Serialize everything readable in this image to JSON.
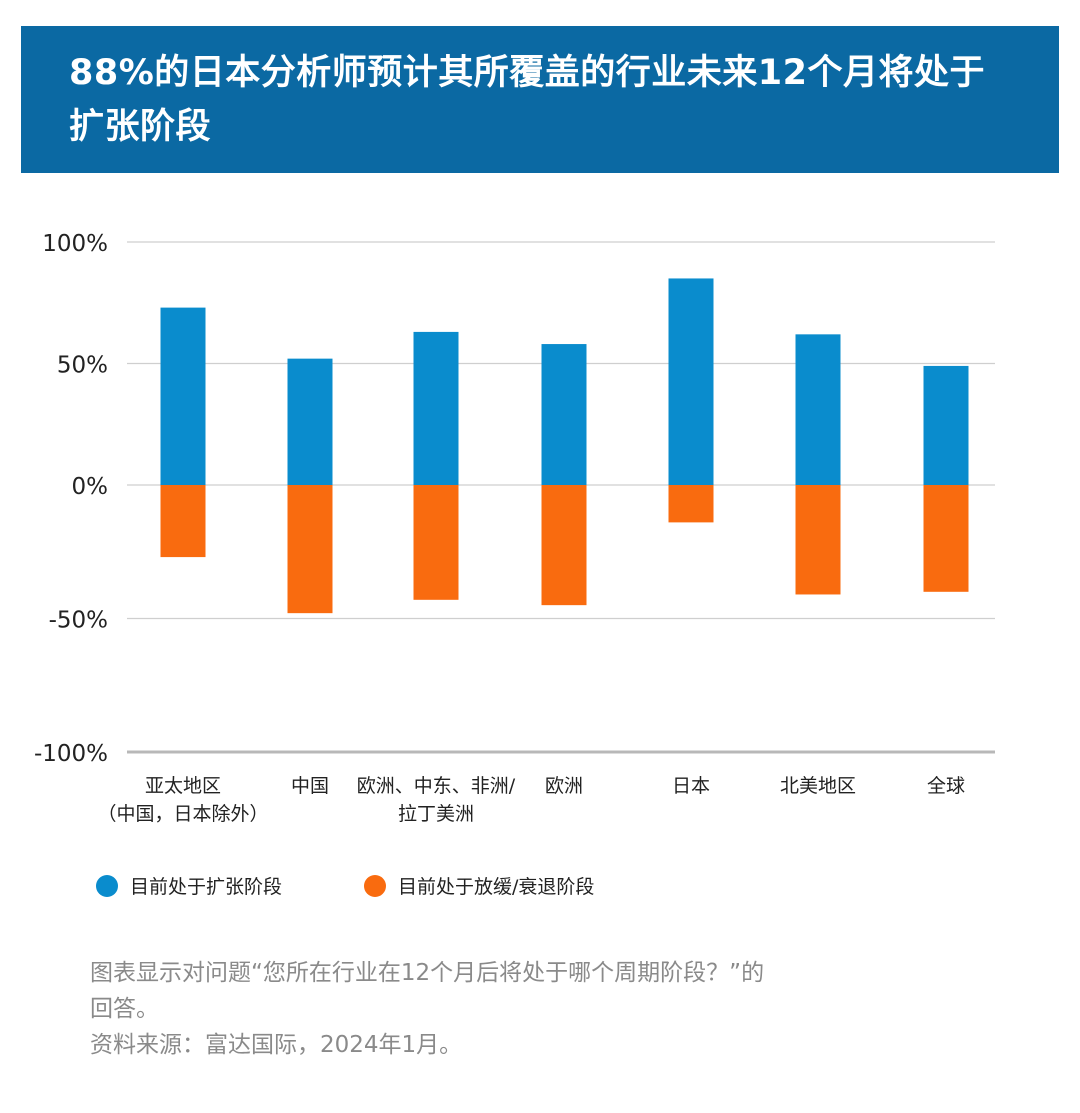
{
  "title": "88%的日本分析师预计其所覆盖的行业未来12个月将处于扩张阶段",
  "colors": {
    "expansion": "#0a8ccd",
    "slowdown": "#f96b0f",
    "title_bg": "#0b69a3",
    "grid": "#cfcfcf"
  },
  "chart_data": {
    "type": "bar",
    "categories": [
      [
        "亚太地区",
        "（中国，日本除外）"
      ],
      [
        "中国"
      ],
      [
        "欧洲、中东、非洲/",
        "拉丁美洲"
      ],
      [
        "欧洲"
      ],
      [
        "日本"
      ],
      [
        "北美地区"
      ],
      [
        "全球"
      ]
    ],
    "series": [
      {
        "name": "目前处于扩张阶段",
        "color": "#0a8ccd",
        "values": [
          73,
          52,
          63,
          58,
          85,
          62,
          49
        ]
      },
      {
        "name": "目前处于放缓/衰退阶段",
        "color": "#f96b0f",
        "values": [
          -27,
          -48,
          -43,
          -45,
          -14,
          -41,
          -40
        ]
      }
    ],
    "ylim": [
      -100,
      100
    ],
    "yticks": [
      100,
      50,
      0,
      -50,
      -100
    ],
    "ytick_labels": [
      "100%",
      "50%",
      "0%",
      "-50%",
      "-100%"
    ],
    "stacked": true,
    "grid": true,
    "legend_position": "bottom"
  },
  "caption": {
    "line1": "图表显示对问题“您所在行业在12个月后将处于哪个周期阶段？”的",
    "line2": "回答。",
    "source": "资料来源：富达国际，2024年1月。"
  }
}
